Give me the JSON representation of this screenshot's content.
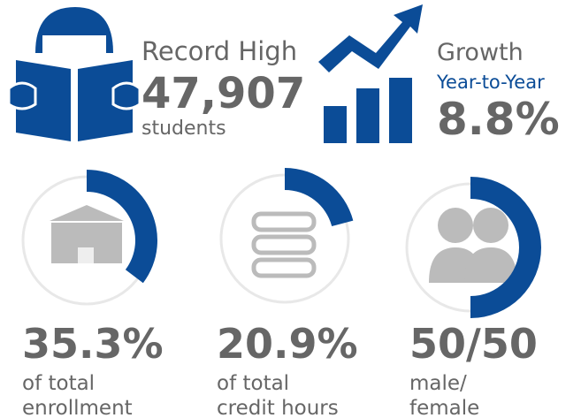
{
  "highlights": [
    {
      "heading": "Record High",
      "figure": "47,907",
      "unit": "students"
    },
    {
      "heading": "Growth",
      "subheading": "Year-to-Year",
      "figure": "8.8%"
    }
  ],
  "stats": [
    {
      "value": 35.3,
      "label": "35.3%",
      "caption": [
        "of total",
        "enrollment"
      ]
    },
    {
      "value": 20.9,
      "label": "20.9%",
      "caption": [
        "of total",
        "credit hours"
      ]
    },
    {
      "value": 50,
      "label": "50/50",
      "caption": [
        "male/",
        "female"
      ]
    }
  ],
  "ring_max": 100,
  "color": "#0b4c97"
}
